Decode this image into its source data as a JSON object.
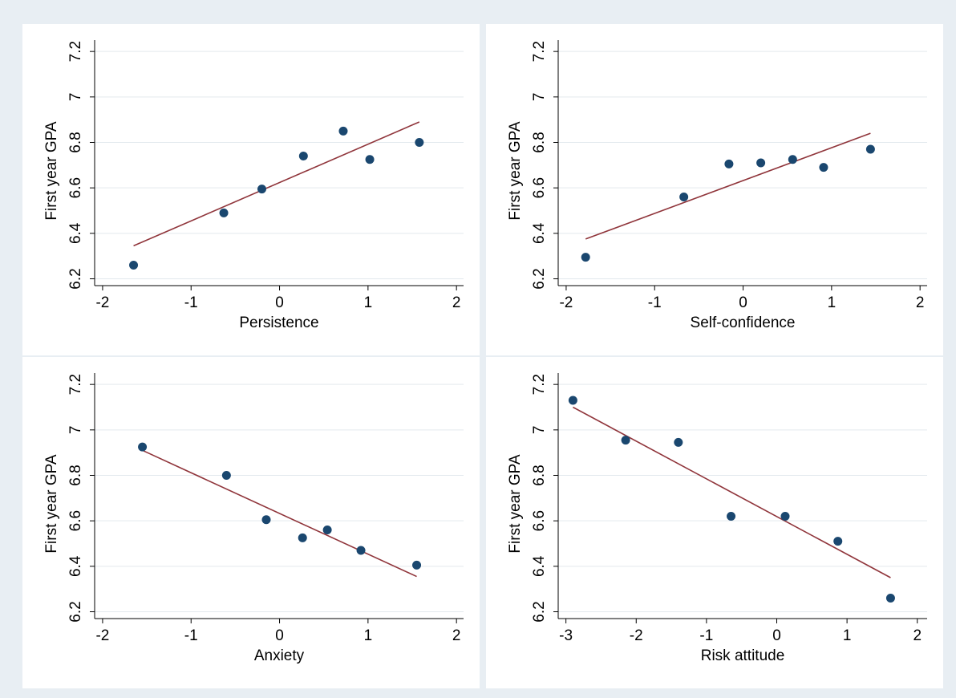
{
  "chart_data": [
    {
      "type": "scatter",
      "x_label": "Persistence",
      "y_label": "First year GPA",
      "x": [
        -1.65,
        -0.63,
        -0.2,
        0.27,
        0.72,
        1.02,
        1.58
      ],
      "values": [
        6.26,
        6.49,
        6.595,
        6.74,
        6.85,
        6.725,
        6.8
      ],
      "color": "#1a476f",
      "fit": {
        "x": [
          -1.65,
          1.58
        ],
        "values": [
          6.345,
          6.89
        ],
        "color": "#90353b"
      },
      "xlim": [
        -2.09,
        2.08
      ],
      "ylim": [
        6.17,
        7.25
      ],
      "xticks": [
        -2,
        -1,
        0,
        1,
        2
      ],
      "yticks": [
        6.2,
        6.4,
        6.6,
        6.8,
        7,
        7.2
      ],
      "grid": true
    },
    {
      "type": "scatter",
      "x_label": "Self-confidence",
      "y_label": "First year GPA",
      "x": [
        -1.78,
        -0.67,
        -0.16,
        0.2,
        0.56,
        0.91,
        1.44
      ],
      "values": [
        6.295,
        6.56,
        6.705,
        6.71,
        6.725,
        6.69,
        6.77
      ],
      "color": "#1a476f",
      "fit": {
        "x": [
          -1.78,
          1.44
        ],
        "values": [
          6.375,
          6.84
        ],
        "color": "#90353b"
      },
      "xlim": [
        -2.09,
        2.08
      ],
      "ylim": [
        6.17,
        7.25
      ],
      "xticks": [
        -2,
        -1,
        0,
        1,
        2
      ],
      "yticks": [
        6.2,
        6.4,
        6.6,
        6.8,
        7,
        7.2
      ],
      "grid": true
    },
    {
      "type": "scatter",
      "x_label": "Anxiety",
      "y_label": "First year GPA",
      "x": [
        -1.55,
        -0.6,
        -0.15,
        0.26,
        0.54,
        0.92,
        1.55
      ],
      "values": [
        6.925,
        6.8,
        6.605,
        6.525,
        6.56,
        6.47,
        6.405
      ],
      "color": "#1a476f",
      "fit": {
        "x": [
          -1.55,
          1.55
        ],
        "values": [
          6.91,
          6.355
        ],
        "color": "#90353b"
      },
      "xlim": [
        -2.09,
        2.08
      ],
      "ylim": [
        6.17,
        7.25
      ],
      "xticks": [
        -2,
        -1,
        0,
        1,
        2
      ],
      "yticks": [
        6.2,
        6.4,
        6.6,
        6.8,
        7,
        7.2
      ],
      "grid": true
    },
    {
      "type": "scatter",
      "x_label": "Risk attitude",
      "y_label": "First year GPA",
      "x": [
        -2.9,
        -2.15,
        -1.4,
        -0.65,
        0.12,
        0.87,
        1.62
      ],
      "values": [
        7.13,
        6.955,
        6.945,
        6.62,
        6.62,
        6.51,
        6.26
      ],
      "color": "#1a476f",
      "fit": {
        "x": [
          -2.9,
          1.62
        ],
        "values": [
          7.1,
          6.35
        ],
        "color": "#90353b"
      },
      "xlim": [
        -3.11,
        2.14
      ],
      "ylim": [
        6.17,
        7.25
      ],
      "xticks": [
        -3,
        -2,
        -1,
        0,
        1,
        2
      ],
      "yticks": [
        6.2,
        6.4,
        6.6,
        6.8,
        7,
        7.2
      ],
      "grid": true
    }
  ]
}
